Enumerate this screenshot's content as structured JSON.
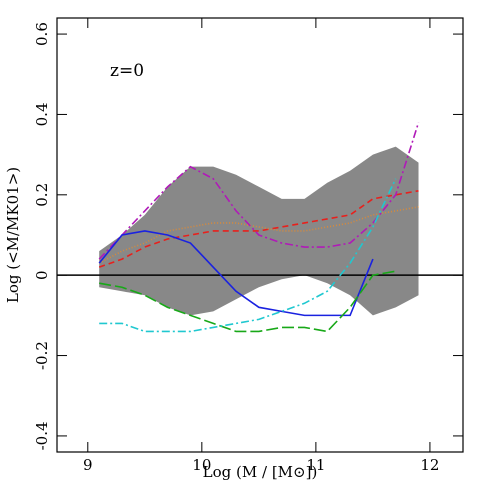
{
  "chart_data": {
    "type": "line",
    "annotation": "z=0",
    "x_label": "Log (M / [M⊙])",
    "y_label": "Log (<M/MK01>)",
    "xlim": [
      8.73,
      12.29
    ],
    "ylim": [
      -0.44,
      0.64
    ],
    "xticks": [
      9,
      10,
      11,
      12
    ],
    "yticks": [
      -0.4,
      -0.2,
      0,
      0.2,
      0.4,
      0.6
    ],
    "hline": 0,
    "band": {
      "color": "#888888",
      "x": [
        9.1,
        9.3,
        9.5,
        9.7,
        9.9,
        10.1,
        10.3,
        10.5,
        10.7,
        10.9,
        11.1,
        11.3,
        11.5,
        11.7,
        11.9
      ],
      "upper": [
        0.06,
        0.1,
        0.15,
        0.22,
        0.27,
        0.27,
        0.25,
        0.22,
        0.19,
        0.19,
        0.23,
        0.26,
        0.3,
        0.32,
        0.28
      ],
      "lower": [
        -0.03,
        -0.04,
        -0.05,
        -0.08,
        -0.1,
        -0.09,
        -0.06,
        -0.03,
        -0.01,
        0.0,
        -0.02,
        -0.05,
        -0.1,
        -0.08,
        -0.05
      ]
    },
    "series": [
      {
        "color": "#e8201c",
        "dash": "6 4",
        "x": [
          9.1,
          9.3,
          9.5,
          9.7,
          9.9,
          10.1,
          10.3,
          10.5,
          10.7,
          10.9,
          11.1,
          11.3,
          11.5,
          11.7,
          11.9
        ],
        "values": [
          0.02,
          0.04,
          0.07,
          0.09,
          0.1,
          0.11,
          0.11,
          0.11,
          0.12,
          0.13,
          0.14,
          0.15,
          0.19,
          0.2,
          0.21
        ]
      },
      {
        "color": "#d88a3a",
        "dash": "1 2",
        "x": [
          9.1,
          9.3,
          9.5,
          9.7,
          9.9,
          10.1,
          10.3,
          10.5,
          10.7,
          10.9,
          11.1,
          11.3,
          11.5,
          11.7,
          11.9
        ],
        "values": [
          0.03,
          0.06,
          0.08,
          0.11,
          0.12,
          0.13,
          0.13,
          0.12,
          0.11,
          0.11,
          0.12,
          0.13,
          0.15,
          0.16,
          0.17
        ]
      },
      {
        "color": "#b01ab8",
        "dash": "8 3 2 3",
        "x": [
          9.1,
          9.3,
          9.5,
          9.7,
          9.9,
          10.1,
          10.3,
          10.5,
          10.7,
          10.9,
          11.1,
          11.3,
          11.5,
          11.7,
          11.9
        ],
        "values": [
          0.04,
          0.1,
          0.16,
          0.22,
          0.27,
          0.24,
          0.16,
          0.1,
          0.08,
          0.07,
          0.07,
          0.08,
          0.13,
          0.2,
          0.38
        ]
      },
      {
        "color": "#1a22e0",
        "dash": "none",
        "x": [
          9.1,
          9.3,
          9.5,
          9.7,
          9.9,
          10.1,
          10.3,
          10.5,
          10.7,
          10.9,
          11.1,
          11.3,
          11.5
        ],
        "values": [
          0.03,
          0.1,
          0.11,
          0.1,
          0.08,
          0.02,
          -0.04,
          -0.08,
          -0.09,
          -0.1,
          -0.1,
          -0.1,
          0.04
        ]
      },
      {
        "color": "#18a818",
        "dash": "12 4",
        "x": [
          9.1,
          9.3,
          9.5,
          9.7,
          9.9,
          10.1,
          10.3,
          10.5,
          10.7,
          10.9,
          11.1,
          11.3,
          11.5,
          11.7
        ],
        "values": [
          -0.02,
          -0.03,
          -0.05,
          -0.08,
          -0.1,
          -0.12,
          -0.14,
          -0.14,
          -0.13,
          -0.13,
          -0.14,
          -0.08,
          0.0,
          0.01
        ]
      },
      {
        "color": "#20c8d0",
        "dash": "8 3 2 3",
        "x": [
          9.1,
          9.3,
          9.5,
          9.7,
          9.9,
          10.1,
          10.3,
          10.5,
          10.7,
          10.9,
          11.1,
          11.3,
          11.5,
          11.7
        ],
        "values": [
          -0.12,
          -0.12,
          -0.14,
          -0.14,
          -0.14,
          -0.13,
          -0.12,
          -0.11,
          -0.09,
          -0.07,
          -0.04,
          0.03,
          0.12,
          0.24
        ]
      }
    ]
  }
}
